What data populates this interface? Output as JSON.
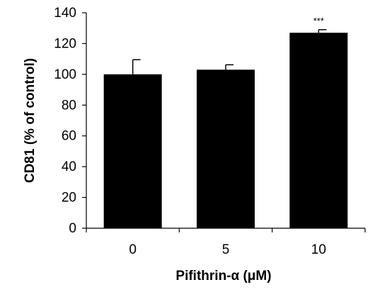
{
  "chart_data": {
    "type": "bar",
    "categories": [
      "0",
      "5",
      "10"
    ],
    "values": [
      100,
      103,
      127
    ],
    "errors": [
      9.5,
      3.2,
      2.0
    ],
    "annotations": [
      "",
      "",
      "***"
    ],
    "xlabel": "Pifithrin-α (μM)",
    "ylabel": "CD81 (% of control)",
    "ylim": [
      0,
      140
    ],
    "yticks": [
      0,
      20,
      40,
      60,
      80,
      100,
      120,
      140
    ],
    "bar_color": "#000000",
    "grid": false,
    "legend": "none"
  }
}
